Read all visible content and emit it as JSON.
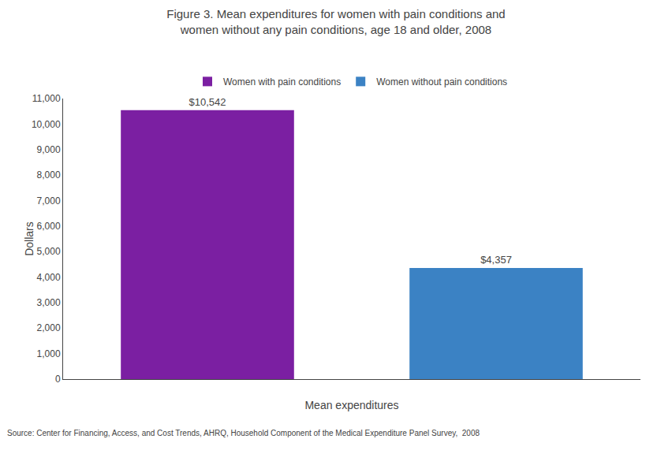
{
  "chart_data": {
    "type": "bar",
    "title": "Figure 3. Mean expenditures for women with pain conditions and\nwomen without any pain conditions, age 18 and older, 2008",
    "categories": [
      "Women with pain conditions",
      "Women without pain conditions"
    ],
    "values": [
      10542,
      4357
    ],
    "value_labels": [
      "$10,542",
      "$4,357"
    ],
    "colors": [
      "#7B1FA2",
      "#3B82C4"
    ],
    "xlabel": "Mean expenditures",
    "ylabel": "Dollars",
    "ylim": [
      0,
      11000
    ],
    "yticks": [
      0,
      {
        "value": 1000,
        "label": "1,000"
      },
      {
        "value": 2000,
        "label": "2,000"
      },
      {
        "value": 3000,
        "label": "3,000"
      },
      {
        "value": 4000,
        "label": "4,000"
      },
      {
        "value": 5000,
        "label": "5,000"
      },
      {
        "value": 6000,
        "label": "6,000"
      },
      {
        "value": 7000,
        "label": "7,000"
      },
      {
        "value": 8000,
        "label": "8,000"
      },
      {
        "value": 9000,
        "label": "9,000"
      },
      {
        "value": 10000,
        "label": "10,000"
      },
      {
        "value": 11000,
        "label": "11,000"
      }
    ],
    "data_labels": true,
    "tick_labels": "y",
    "legend": "top",
    "grid": false,
    "annotations": [
      "Source: Center for Financing, Access, and Cost Trends, AHRQ, Household Component of the Medical Expenditure Panel Survey,  2008"
    ]
  }
}
